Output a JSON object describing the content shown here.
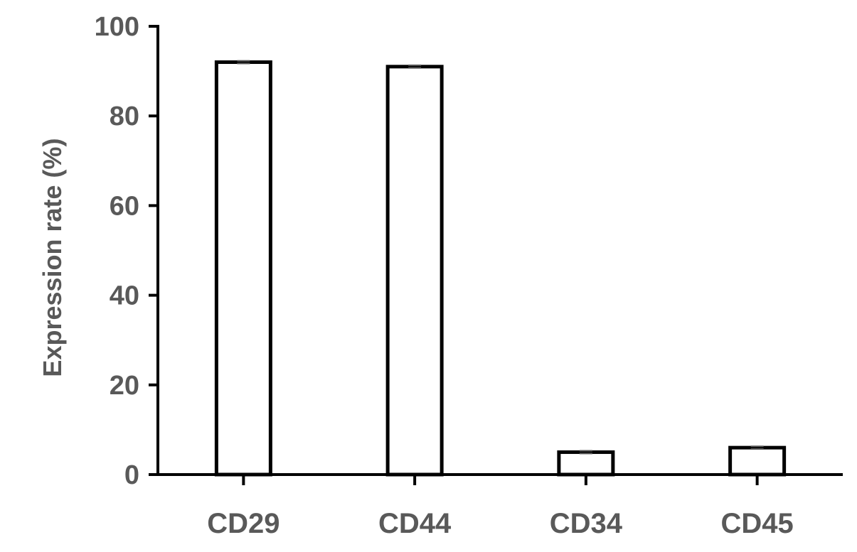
{
  "chart_data": {
    "type": "bar",
    "title": "",
    "xlabel": "",
    "ylabel": "Expression rate (%)",
    "categories": [
      "CD29",
      "CD44",
      "CD34",
      "CD45"
    ],
    "values": [
      92,
      91,
      5,
      6
    ],
    "errors": [
      0.3,
      0.3,
      0.3,
      0.3
    ],
    "ylim": [
      0,
      100
    ],
    "yticks": [
      0,
      20,
      40,
      60,
      80,
      100
    ],
    "grid": false,
    "legend": "none",
    "colors": {
      "bar_fill": "#ffffff",
      "bar_stroke": "#000000",
      "axis": "#000000",
      "text": "#595959"
    }
  }
}
